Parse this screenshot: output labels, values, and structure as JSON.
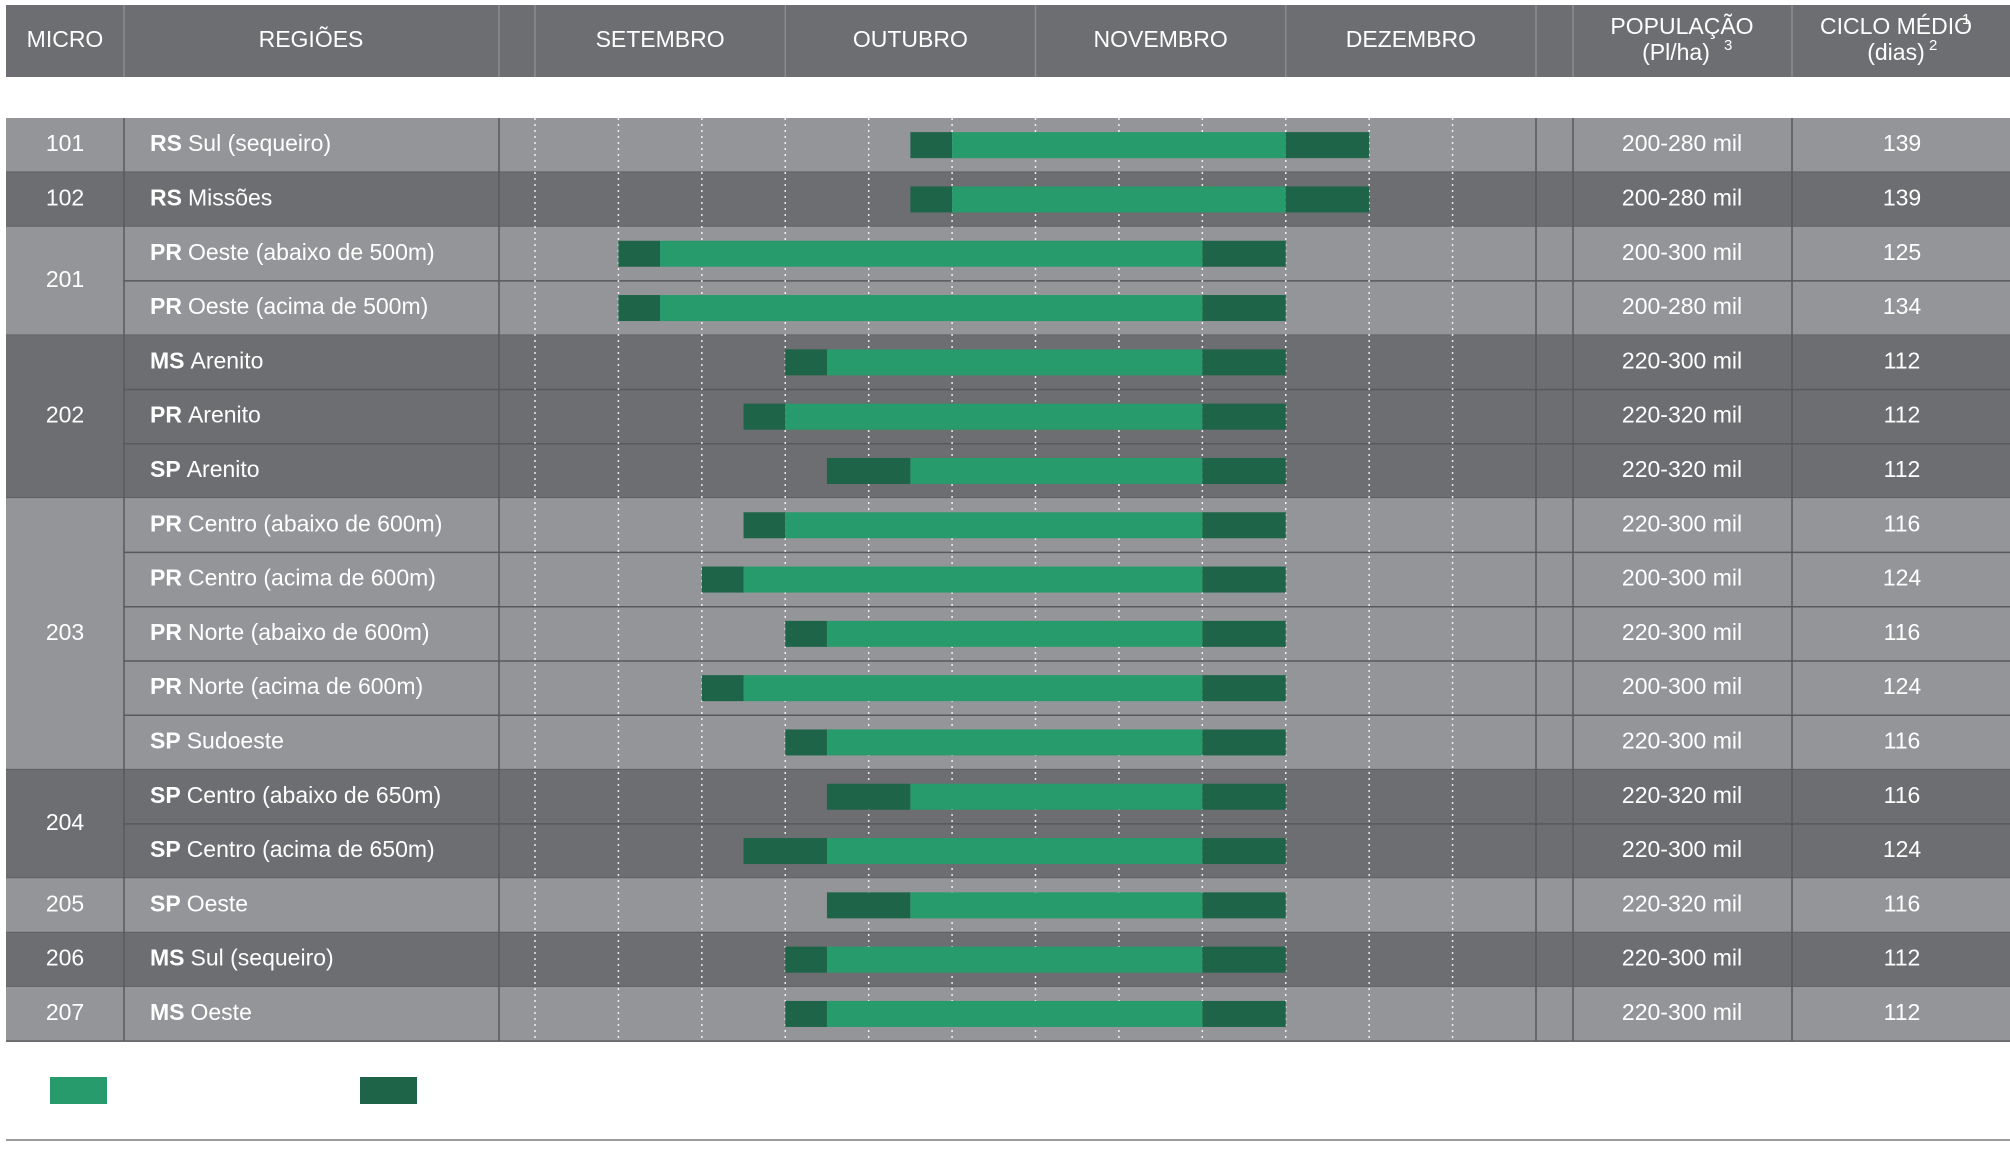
{
  "header": {
    "micro": "MICRO",
    "regions": "REGIÕES",
    "months": [
      "SETEMBRO",
      "OUTUBRO",
      "NOVEMBRO",
      "DEZEMBRO"
    ],
    "population": "POPULAÇÃO",
    "population_unit": "(Pl/ha)",
    "population_note": "3",
    "cycle": "CICLO MÉDIO",
    "cycle_note": "1",
    "cycle_unit": "(dias)",
    "cycle_unit_note": "2"
  },
  "xlim": [
    0,
    12
  ],
  "xticks": [
    0,
    1,
    2,
    3,
    4,
    5,
    6,
    7,
    8,
    9,
    10,
    11
  ],
  "colors": {
    "ideal": "#279b6b",
    "margin": "#1d6448"
  },
  "groups": [
    {
      "micro": "101",
      "rows": [
        {
          "state": "RS",
          "region": "Sul (sequeiro)",
          "population": "200-280 mil",
          "cycle": "139",
          "early": [
            4.5,
            5
          ],
          "ideal": [
            5,
            9
          ],
          "late": [
            9,
            10
          ]
        }
      ]
    },
    {
      "micro": "102",
      "rows": [
        {
          "state": "RS",
          "region": "Missões",
          "population": "200-280 mil",
          "cycle": "139",
          "early": [
            4.5,
            5
          ],
          "ideal": [
            5,
            9
          ],
          "late": [
            9,
            10
          ]
        }
      ]
    },
    {
      "micro": "201",
      "rows": [
        {
          "state": "PR",
          "region": "Oeste (abaixo de 500m)",
          "population": "200-300 mil",
          "cycle": "125",
          "early": [
            1,
            1.5
          ],
          "ideal": [
            1.5,
            8
          ],
          "late": [
            8,
            9
          ]
        },
        {
          "state": "PR",
          "region": "Oeste (acima de 500m)",
          "population": "200-280 mil",
          "cycle": "134",
          "early": [
            1,
            1.5
          ],
          "ideal": [
            1.5,
            8
          ],
          "late": [
            8,
            9
          ]
        }
      ]
    },
    {
      "micro": "202",
      "rows": [
        {
          "state": "MS",
          "region": "Arenito",
          "population": "220-300 mil",
          "cycle": "112",
          "early": [
            3,
            3.5
          ],
          "ideal": [
            3.5,
            8
          ],
          "late": [
            8,
            9
          ]
        },
        {
          "state": "PR",
          "region": "Arenito",
          "population": "220-320 mil",
          "cycle": "112",
          "early": [
            2.5,
            3
          ],
          "ideal": [
            3,
            8
          ],
          "late": [
            8,
            9
          ]
        },
        {
          "state": "SP",
          "region": "Arenito",
          "population": "220-320 mil",
          "cycle": "112",
          "early": [
            3.5,
            4.5
          ],
          "ideal": [
            4.5,
            8
          ],
          "late": [
            8,
            9
          ]
        }
      ]
    },
    {
      "micro": "203",
      "rows": [
        {
          "state": "PR",
          "region": "Centro (abaixo de 600m)",
          "population": "220-300 mil",
          "cycle": "116",
          "early": [
            2.5,
            3
          ],
          "ideal": [
            3,
            8
          ],
          "late": [
            8,
            9
          ]
        },
        {
          "state": "PR",
          "region": "Centro (acima de 600m)",
          "population": "200-300 mil",
          "cycle": "124",
          "early": [
            2,
            2.5
          ],
          "ideal": [
            2.5,
            8
          ],
          "late": [
            8,
            9
          ]
        },
        {
          "state": "PR",
          "region": "Norte (abaixo de 600m)",
          "population": "220-300 mil",
          "cycle": "116",
          "early": [
            3,
            3.5
          ],
          "ideal": [
            3.5,
            8
          ],
          "late": [
            8,
            9
          ]
        },
        {
          "state": "PR",
          "region": "Norte (acima de 600m)",
          "population": "200-300 mil",
          "cycle": "124",
          "early": [
            2,
            2.5
          ],
          "ideal": [
            2.5,
            8
          ],
          "late": [
            8,
            9
          ]
        },
        {
          "state": "SP",
          "region": "Sudoeste",
          "population": "220-300 mil",
          "cycle": "116",
          "early": [
            3,
            3.5
          ],
          "ideal": [
            3.5,
            8
          ],
          "late": [
            8,
            9
          ]
        }
      ]
    },
    {
      "micro": "204",
      "rows": [
        {
          "state": "SP",
          "region": "Centro (abaixo de 650m)",
          "population": "220-320 mil",
          "cycle": "116",
          "early": [
            3.5,
            4.5
          ],
          "ideal": [
            4.5,
            8
          ],
          "late": [
            8,
            9
          ]
        },
        {
          "state": "SP",
          "region": "Centro (acima de 650m)",
          "population": "220-300 mil",
          "cycle": "124",
          "early": [
            2.5,
            3.5
          ],
          "ideal": [
            3.5,
            8
          ],
          "late": [
            8,
            9
          ]
        }
      ]
    },
    {
      "micro": "205",
      "rows": [
        {
          "state": "SP",
          "region": "Oeste",
          "population": "220-320 mil",
          "cycle": "116",
          "early": [
            3.5,
            4.5
          ],
          "ideal": [
            4.5,
            8
          ],
          "late": [
            8,
            9
          ]
        }
      ]
    },
    {
      "micro": "206",
      "rows": [
        {
          "state": "MS",
          "region": "Sul (sequeiro)",
          "population": "220-300 mil",
          "cycle": "112",
          "early": [
            3,
            3.5
          ],
          "ideal": [
            3.5,
            8
          ],
          "late": [
            8,
            9
          ]
        }
      ]
    },
    {
      "micro": "207",
      "rows": [
        {
          "state": "MS",
          "region": "Oeste",
          "population": "220-300 mil",
          "cycle": "112",
          "early": [
            3,
            3.5
          ],
          "ideal": [
            3.5,
            8
          ],
          "late": [
            8,
            9
          ]
        }
      ]
    }
  ]
}
